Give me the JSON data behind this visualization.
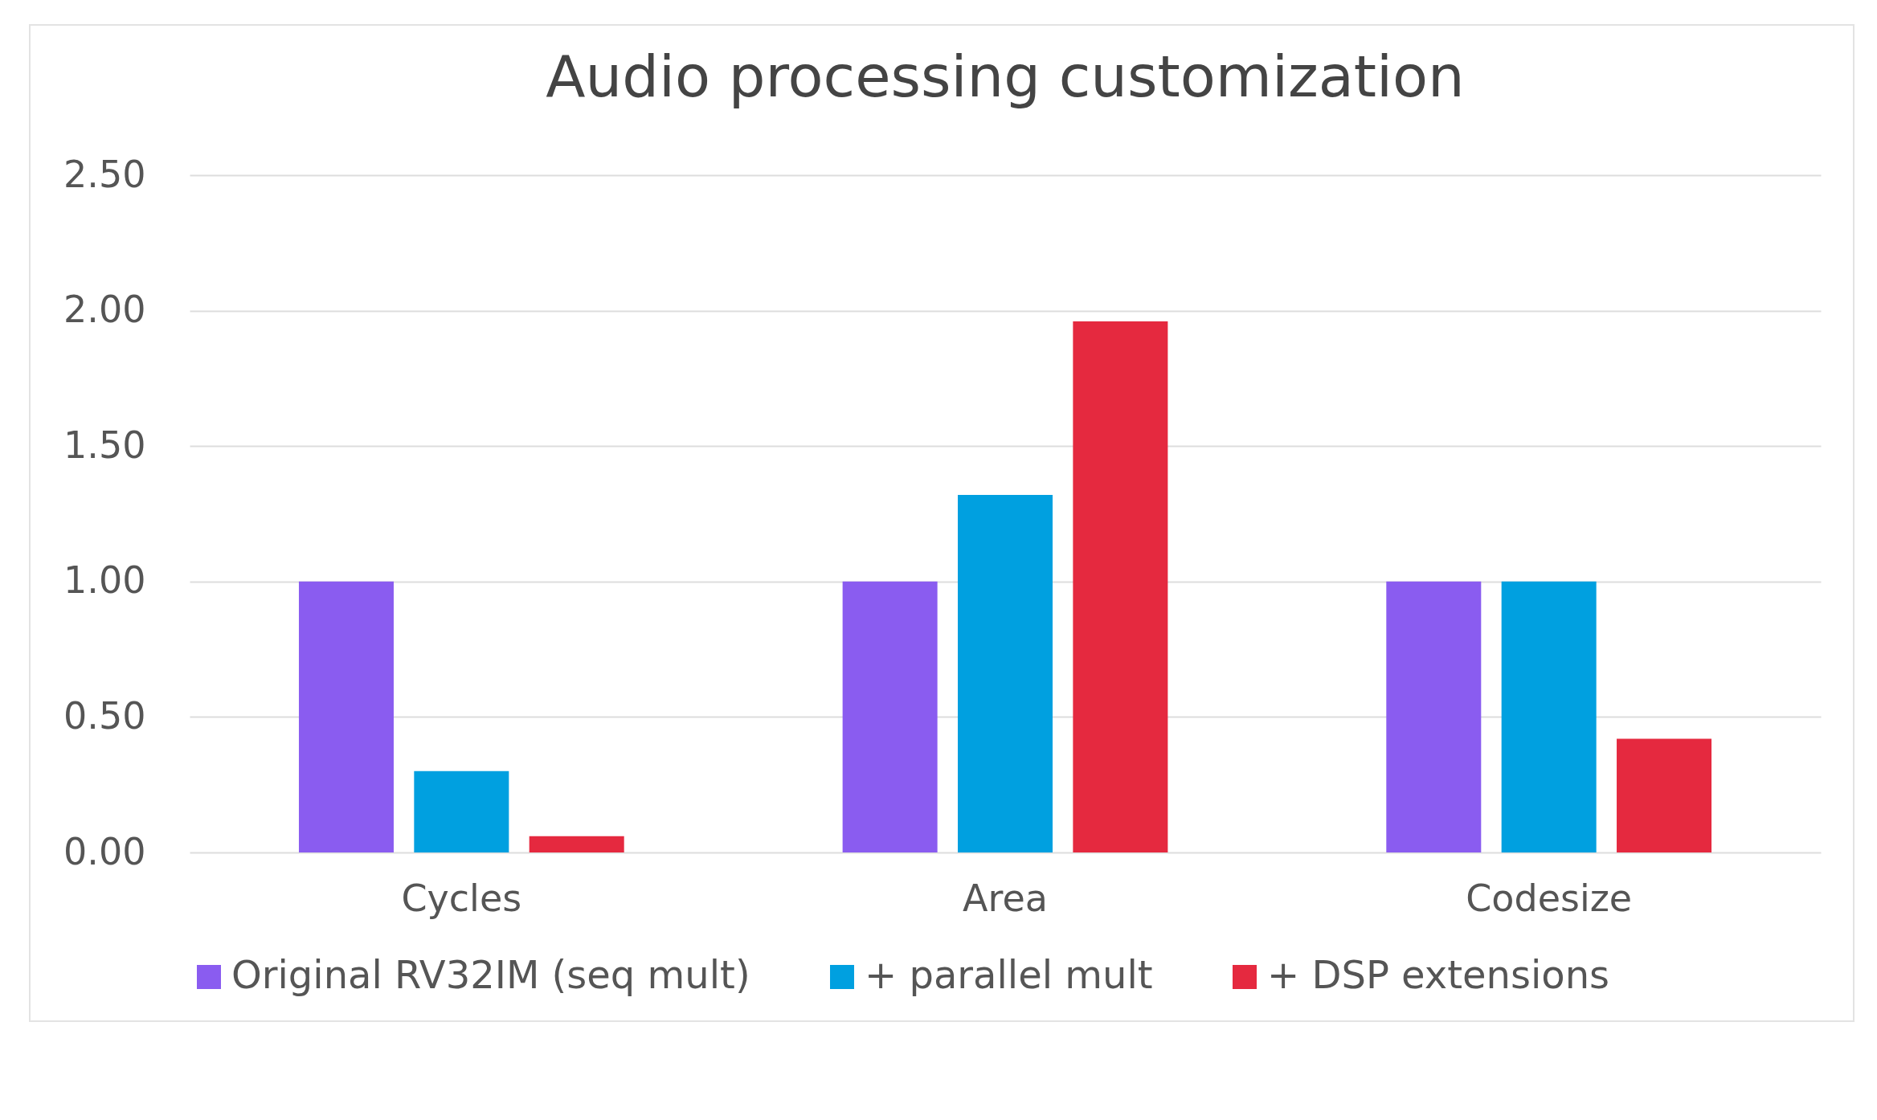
{
  "chart_data": {
    "type": "bar",
    "title": "Audio processing customization",
    "categories": [
      "Cycles",
      "Area",
      "Codesize"
    ],
    "series": [
      {
        "name": "Original RV32IM (seq mult)",
        "color": "#8a5cf0",
        "values": [
          1.0,
          1.0,
          1.0
        ]
      },
      {
        "name": "+ parallel mult",
        "color": "#00a0e0",
        "values": [
          0.3,
          1.32,
          1.0
        ]
      },
      {
        "name": "+ DSP extensions",
        "color": "#e5293f",
        "values": [
          0.06,
          1.96,
          0.42
        ]
      }
    ],
    "ylim": [
      0,
      2.5
    ],
    "yticks": [
      {
        "value": 0,
        "label": "0.00"
      },
      {
        "value": 0.5,
        "label": "0.50"
      },
      {
        "value": 1,
        "label": "1.00"
      },
      {
        "value": 1.5,
        "label": "1.50"
      },
      {
        "value": 2,
        "label": "2.00"
      },
      {
        "value": 2.5,
        "label": "2.50"
      }
    ],
    "grid": "y",
    "legend": "bottom"
  }
}
